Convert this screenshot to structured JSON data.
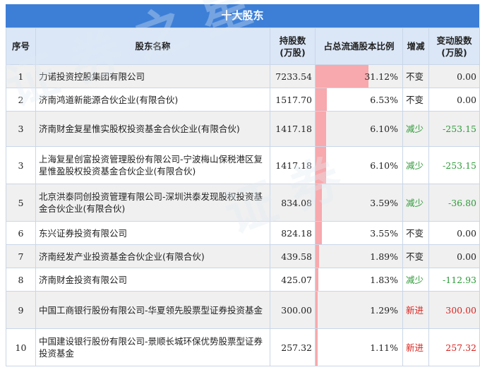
{
  "title": "十大股东",
  "headers": {
    "idx": "序号",
    "name": "股东名称",
    "shares_line1": "持股数",
    "shares_line2": "(万股)",
    "ratio": "占总流通股本比例",
    "change": "增减",
    "delta_line1": "变动股数",
    "delta_line2": "(万股)"
  },
  "colors": {
    "header_bar": "#3d7fd7",
    "header_row": "#dbe7f7",
    "ratio_bar": "#f7a9ad",
    "down": "#2e9a39",
    "new": "#d8231f"
  },
  "rows": [
    {
      "idx": "1",
      "name": "力诺投资控股集团有限公司",
      "shares": "7233.54",
      "ratio": "31.12%",
      "ratio_value": 31.12,
      "change": "不变",
      "change_type": "same",
      "delta": "0.00"
    },
    {
      "idx": "2",
      "name": "济南鸿道新能源合伙企业(有限合伙)",
      "shares": "1517.70",
      "ratio": "6.53%",
      "ratio_value": 6.53,
      "change": "不变",
      "change_type": "same",
      "delta": "0.00"
    },
    {
      "idx": "3",
      "name": "济南财金复星惟实股权投资基金合伙企业(有限合伙)",
      "shares": "1417.18",
      "ratio": "6.10%",
      "ratio_value": 6.1,
      "change": "减少",
      "change_type": "down",
      "delta": "-253.15"
    },
    {
      "idx": "3",
      "name": "上海复星创富投资管理股份有限公司-宁波梅山保税港区复星惟盈股权投资基金合伙企业(有限合伙)",
      "shares": "1417.18",
      "ratio": "6.10%",
      "ratio_value": 6.1,
      "change": "减少",
      "change_type": "down",
      "delta": "-253.15"
    },
    {
      "idx": "5",
      "name": "北京洪泰同创投资管理有限公司-深圳洪泰发现股权投资基金合伙企业(有限合伙)",
      "shares": "834.08",
      "ratio": "3.59%",
      "ratio_value": 3.59,
      "change": "减少",
      "change_type": "down",
      "delta": "-36.80"
    },
    {
      "idx": "6",
      "name": "东兴证券投资有限公司",
      "shares": "824.18",
      "ratio": "3.55%",
      "ratio_value": 3.55,
      "change": "不变",
      "change_type": "same",
      "delta": "0.00"
    },
    {
      "idx": "7",
      "name": "济南经发产业投资基金合伙企业(有限合伙)",
      "shares": "439.58",
      "ratio": "1.89%",
      "ratio_value": 1.89,
      "change": "不变",
      "change_type": "same",
      "delta": "0.00"
    },
    {
      "idx": "8",
      "name": "济南财金投资有限公司",
      "shares": "425.07",
      "ratio": "1.83%",
      "ratio_value": 1.83,
      "change": "减少",
      "change_type": "down",
      "delta": "-112.93"
    },
    {
      "idx": "9",
      "name": "中国工商银行股份有限公司-华夏领先股票型证券投资基金",
      "shares": "300.00",
      "ratio": "1.29%",
      "ratio_value": 1.29,
      "change": "新进",
      "change_type": "new",
      "delta": "300.00"
    },
    {
      "idx": "10",
      "name": "中国建设银行股份有限公司-景顺长城环保优势股票型证券投资基金",
      "shares": "257.32",
      "ratio": "1.11%",
      "ratio_value": 1.11,
      "change": "新进",
      "change_type": "new",
      "delta": "257.32"
    }
  ]
}
